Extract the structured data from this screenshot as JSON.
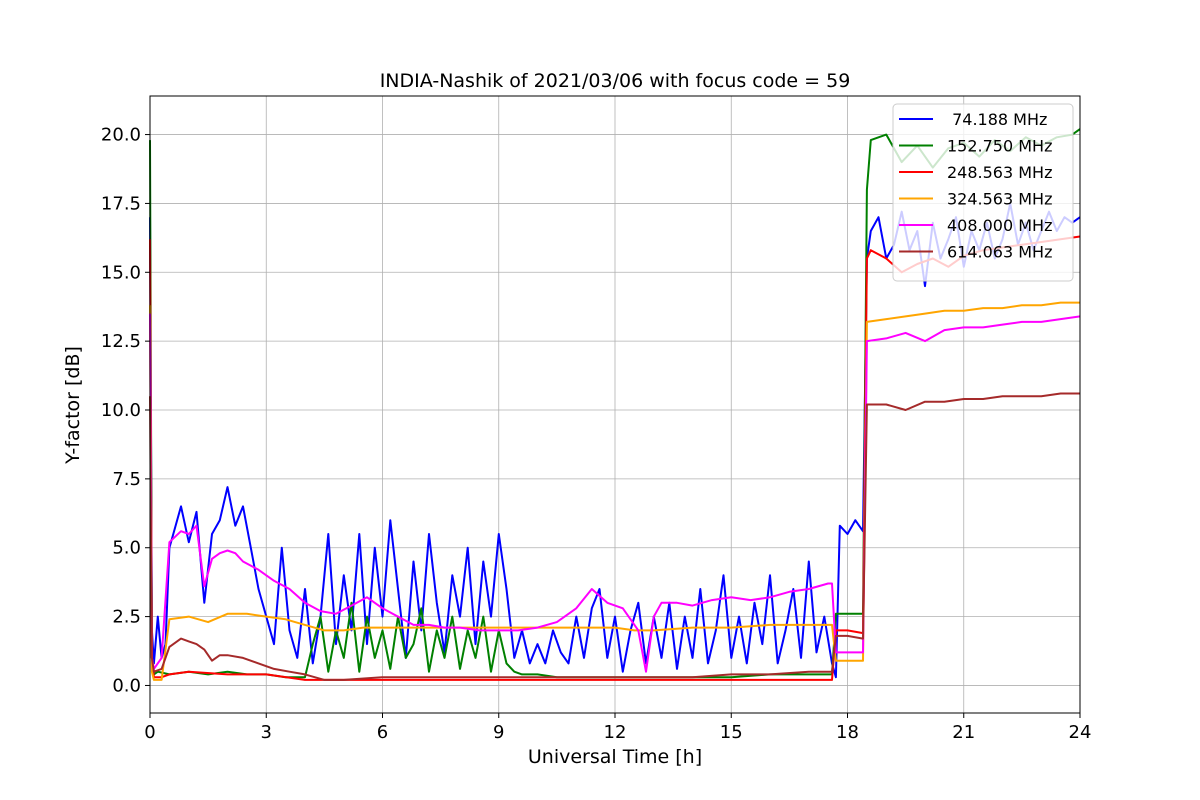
{
  "chart_data": {
    "type": "line",
    "title": "INDIA-Nashik of 2021/03/06 with focus code = 59",
    "xlabel": "Universal Time [h]",
    "ylabel": "Y-factor [dB]",
    "xlim": [
      0,
      24
    ],
    "ylim": [
      -1.0,
      21.4
    ],
    "xticks": [
      0,
      3,
      6,
      9,
      12,
      15,
      18,
      21,
      24
    ],
    "xtick_labels": [
      "0",
      "3",
      "6",
      "9",
      "12",
      "15",
      "18",
      "21",
      "24"
    ],
    "yticks": [
      0,
      2.5,
      5,
      7.5,
      10,
      12.5,
      15,
      17.5,
      20
    ],
    "ytick_labels": [
      "0.0",
      "2.5",
      "5.0",
      "7.5",
      "10.0",
      "12.5",
      "15.0",
      "17.5",
      "20.0"
    ],
    "grid": true,
    "legend_position": "top-right",
    "series": [
      {
        "name": " 74.188 MHz",
        "color": "#0000ff",
        "x": [
          0,
          0.05,
          0.1,
          0.2,
          0.3,
          0.4,
          0.5,
          0.6,
          0.8,
          1.0,
          1.2,
          1.4,
          1.6,
          1.8,
          2.0,
          2.2,
          2.4,
          2.6,
          2.8,
          3.0,
          3.2,
          3.4,
          3.6,
          3.8,
          4.0,
          4.2,
          4.4,
          4.6,
          4.8,
          5.0,
          5.2,
          5.4,
          5.6,
          5.8,
          6.0,
          6.2,
          6.4,
          6.6,
          6.8,
          7.0,
          7.2,
          7.4,
          7.6,
          7.8,
          8.0,
          8.2,
          8.4,
          8.6,
          8.8,
          9.0,
          9.2,
          9.4,
          9.6,
          9.8,
          10.0,
          10.2,
          10.4,
          10.6,
          10.8,
          11.0,
          11.2,
          11.4,
          11.6,
          11.8,
          12.0,
          12.2,
          12.4,
          12.6,
          12.8,
          13.0,
          13.2,
          13.4,
          13.6,
          13.8,
          14.0,
          14.2,
          14.4,
          14.6,
          14.8,
          15.0,
          15.2,
          15.4,
          15.6,
          15.8,
          16.0,
          16.2,
          16.4,
          16.6,
          16.8,
          17.0,
          17.2,
          17.4,
          17.6,
          17.7,
          17.8,
          18.0,
          18.2,
          18.4,
          18.5,
          18.6,
          18.8,
          19.0,
          19.2,
          19.4,
          19.6,
          19.8,
          20.0,
          20.2,
          20.4,
          20.6,
          20.8,
          21.0,
          21.2,
          21.4,
          21.6,
          21.8,
          22.0,
          22.2,
          22.4,
          22.6,
          22.8,
          23.0,
          23.2,
          23.4,
          23.6,
          23.8,
          24.0
        ],
        "y": [
          17.0,
          2.0,
          0.8,
          2.5,
          1.0,
          1.5,
          5.0,
          5.5,
          6.5,
          5.2,
          6.3,
          3.0,
          5.5,
          6.0,
          7.2,
          5.8,
          6.5,
          5.0,
          3.5,
          2.5,
          1.5,
          5.0,
          2.0,
          1.0,
          3.5,
          0.8,
          2.5,
          5.5,
          1.5,
          4.0,
          2.0,
          5.5,
          1.5,
          5.0,
          2.5,
          6.0,
          3.5,
          1.0,
          4.5,
          2.0,
          5.5,
          3.0,
          1.2,
          4.0,
          2.5,
          5.0,
          1.5,
          4.5,
          2.5,
          5.5,
          3.5,
          1.0,
          2.0,
          0.8,
          1.5,
          0.8,
          2.0,
          1.2,
          0.8,
          2.5,
          1.0,
          2.8,
          3.5,
          1.0,
          2.5,
          0.5,
          2.0,
          3.0,
          0.8,
          2.5,
          1.0,
          3.0,
          0.6,
          2.5,
          1.0,
          3.5,
          0.8,
          2.0,
          4.0,
          1.0,
          2.5,
          0.8,
          3.0,
          1.5,
          4.0,
          0.8,
          2.0,
          3.5,
          1.0,
          4.5,
          1.2,
          2.5,
          0.8,
          0.3,
          5.8,
          5.5,
          6.0,
          5.6,
          15.5,
          16.5,
          17.0,
          15.5,
          16.0,
          17.2,
          15.8,
          16.5,
          14.5,
          16.8,
          15.5,
          16.2,
          17.0,
          15.2,
          16.5,
          15.8,
          16.8,
          15.5,
          16.2,
          17.5,
          16.0,
          16.8,
          15.8,
          16.5,
          17.2,
          16.5,
          17.0,
          16.8,
          17.0
        ]
      },
      {
        "name": "152.750 MHz",
        "color": "#008000",
        "x": [
          0,
          0.05,
          0.1,
          0.2,
          0.5,
          1.0,
          1.5,
          2.0,
          2.5,
          3.0,
          3.5,
          4.0,
          4.2,
          4.4,
          4.6,
          4.8,
          5.0,
          5.2,
          5.4,
          5.6,
          5.8,
          6.0,
          6.2,
          6.4,
          6.6,
          6.8,
          7.0,
          7.2,
          7.4,
          7.6,
          7.8,
          8.0,
          8.2,
          8.4,
          8.6,
          8.8,
          9.0,
          9.2,
          9.4,
          9.6,
          10.0,
          10.5,
          11.0,
          12.0,
          13.0,
          14.0,
          15.0,
          16.0,
          17.0,
          17.6,
          17.7,
          18.0,
          18.4,
          18.5,
          18.6,
          19.0,
          19.4,
          19.8,
          20.2,
          20.6,
          21.0,
          21.4,
          21.8,
          22.2,
          22.6,
          23.0,
          23.4,
          23.8,
          24.0
        ],
        "y": [
          19.8,
          1.0,
          0.4,
          0.5,
          0.4,
          0.5,
          0.4,
          0.5,
          0.4,
          0.4,
          0.3,
          0.3,
          1.5,
          2.5,
          0.5,
          2.0,
          1.0,
          3.0,
          0.5,
          2.5,
          1.0,
          2.0,
          0.6,
          2.5,
          1.0,
          1.5,
          2.8,
          0.5,
          2.0,
          1.0,
          2.5,
          0.6,
          2.0,
          1.0,
          2.5,
          0.5,
          2.0,
          0.8,
          0.5,
          0.4,
          0.4,
          0.3,
          0.3,
          0.3,
          0.3,
          0.3,
          0.3,
          0.4,
          0.4,
          0.4,
          2.6,
          2.6,
          2.6,
          18.0,
          19.8,
          20.0,
          19.0,
          19.6,
          18.8,
          19.5,
          19.7,
          19.2,
          19.8,
          19.4,
          19.9,
          19.6,
          19.9,
          20.0,
          20.2
        ]
      },
      {
        "name": "248.563 MHz",
        "color": "#ff0000",
        "x": [
          0,
          0.05,
          0.1,
          0.3,
          0.5,
          1.0,
          2.0,
          3.0,
          4.0,
          5.0,
          6.0,
          7.0,
          8.0,
          9.0,
          10.0,
          11.0,
          12.0,
          13.0,
          14.0,
          15.0,
          16.0,
          17.0,
          17.6,
          17.7,
          18.0,
          18.4,
          18.5,
          18.6,
          19.0,
          19.4,
          19.8,
          20.2,
          20.6,
          21.0,
          21.5,
          22.0,
          22.5,
          23.0,
          23.5,
          24.0
        ],
        "y": [
          16.2,
          1.0,
          0.3,
          0.3,
          0.4,
          0.5,
          0.4,
          0.4,
          0.2,
          0.2,
          0.2,
          0.2,
          0.2,
          0.2,
          0.2,
          0.2,
          0.2,
          0.2,
          0.2,
          0.2,
          0.2,
          0.2,
          0.2,
          2.0,
          2.0,
          1.9,
          15.5,
          15.8,
          15.5,
          15.0,
          15.3,
          15.5,
          15.2,
          15.6,
          15.8,
          15.9,
          16.0,
          16.1,
          16.2,
          16.3
        ]
      },
      {
        "name": "324.563 MHz",
        "color": "#ffa500",
        "x": [
          0,
          0.05,
          0.1,
          0.3,
          0.5,
          1.0,
          1.5,
          2.0,
          2.5,
          3.0,
          3.5,
          4.0,
          4.5,
          5.0,
          5.5,
          6.0,
          7.0,
          8.0,
          9.0,
          10.0,
          11.0,
          12.0,
          12.5,
          13.0,
          14.0,
          15.0,
          16.0,
          17.0,
          17.6,
          17.7,
          18.0,
          18.4,
          18.5,
          19.0,
          19.5,
          20.0,
          20.5,
          21.0,
          21.5,
          22.0,
          22.5,
          23.0,
          23.5,
          24.0
        ],
        "y": [
          13.8,
          0.5,
          0.2,
          0.2,
          2.4,
          2.5,
          2.3,
          2.6,
          2.6,
          2.5,
          2.4,
          2.2,
          2.0,
          2.0,
          2.1,
          2.1,
          2.1,
          2.1,
          2.1,
          2.1,
          2.1,
          2.1,
          2.0,
          2.0,
          2.1,
          2.1,
          2.2,
          2.2,
          2.2,
          0.9,
          0.9,
          0.9,
          13.2,
          13.3,
          13.4,
          13.5,
          13.6,
          13.6,
          13.7,
          13.7,
          13.8,
          13.8,
          13.9,
          13.9
        ]
      },
      {
        "name": "408.000 MHz",
        "color": "#ff00ff",
        "x": [
          0,
          0.05,
          0.1,
          0.3,
          0.5,
          0.8,
          1.0,
          1.2,
          1.4,
          1.6,
          1.8,
          2.0,
          2.2,
          2.4,
          2.8,
          3.2,
          3.6,
          4.0,
          4.4,
          4.8,
          5.2,
          5.6,
          6.0,
          6.4,
          6.8,
          7.2,
          7.6,
          8.0,
          8.5,
          9.0,
          9.5,
          10.0,
          10.5,
          11.0,
          11.4,
          11.8,
          12.2,
          12.6,
          12.8,
          13.0,
          13.2,
          13.6,
          14.0,
          14.5,
          15.0,
          15.5,
          16.0,
          16.5,
          17.0,
          17.5,
          17.6,
          17.7,
          18.0,
          18.4,
          18.5,
          19.0,
          19.5,
          20.0,
          20.5,
          21.0,
          21.5,
          22.0,
          22.5,
          23.0,
          23.5,
          24.0
        ],
        "y": [
          13.5,
          1.0,
          0.6,
          1.0,
          5.2,
          5.6,
          5.5,
          5.8,
          3.6,
          4.6,
          4.8,
          4.9,
          4.8,
          4.5,
          4.2,
          3.8,
          3.5,
          3.0,
          2.7,
          2.6,
          2.9,
          3.2,
          2.8,
          2.5,
          2.2,
          2.2,
          2.1,
          2.1,
          2.0,
          2.0,
          2.0,
          2.1,
          2.3,
          2.8,
          3.5,
          3.0,
          2.8,
          2.0,
          0.5,
          2.5,
          3.0,
          3.0,
          2.9,
          3.1,
          3.2,
          3.1,
          3.2,
          3.4,
          3.5,
          3.7,
          3.7,
          1.2,
          1.2,
          1.2,
          12.5,
          12.6,
          12.8,
          12.5,
          12.9,
          13.0,
          13.0,
          13.1,
          13.2,
          13.2,
          13.3,
          13.4
        ]
      },
      {
        "name": "614.063 MHz",
        "color": "#a52a2a",
        "x": [
          0,
          0.05,
          0.1,
          0.3,
          0.5,
          0.8,
          1.0,
          1.2,
          1.4,
          1.6,
          1.8,
          2.0,
          2.4,
          2.8,
          3.2,
          3.6,
          4.0,
          4.5,
          5.0,
          6.0,
          7.0,
          8.0,
          9.0,
          10.0,
          11.0,
          12.0,
          13.0,
          14.0,
          15.0,
          16.0,
          17.0,
          17.6,
          17.7,
          18.0,
          18.4,
          18.5,
          19.0,
          19.5,
          20.0,
          20.5,
          21.0,
          21.5,
          22.0,
          22.5,
          23.0,
          23.5,
          24.0
        ],
        "y": [
          10.5,
          1.0,
          0.5,
          0.6,
          1.4,
          1.7,
          1.6,
          1.5,
          1.3,
          0.9,
          1.1,
          1.1,
          1.0,
          0.8,
          0.6,
          0.5,
          0.4,
          0.2,
          0.2,
          0.3,
          0.3,
          0.3,
          0.3,
          0.3,
          0.3,
          0.3,
          0.3,
          0.3,
          0.4,
          0.4,
          0.5,
          0.5,
          1.8,
          1.8,
          1.7,
          10.2,
          10.2,
          10.0,
          10.3,
          10.3,
          10.4,
          10.4,
          10.5,
          10.5,
          10.5,
          10.6,
          10.6
        ]
      }
    ]
  }
}
